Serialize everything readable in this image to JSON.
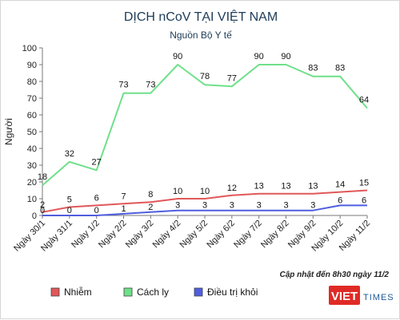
{
  "header": {
    "title": "DỊCH nCoV TẠI VIỆT NAM",
    "subtitle": "Nguồn Bộ Y tế"
  },
  "footer": {
    "update_note": "Cập nhật đến 8h30 ngày 11/2"
  },
  "logo": {
    "text_main": "VIET",
    "text_sub": "TIMES"
  },
  "chart_data": {
    "type": "line",
    "categories": [
      "Ngày 30/1",
      "Ngày 31/1",
      "Ngày 1/2",
      "Ngày 2/2",
      "Ngày 3/2",
      "Ngày 4/2",
      "Ngày 5/2",
      "Ngày 6/2",
      "Ngày 7/2",
      "Ngày 8/2",
      "Ngày 9/2",
      "Ngày 10/2",
      "Ngày 11/2"
    ],
    "series": [
      {
        "name": "Nhiễm",
        "values": [
          2,
          5,
          6,
          7,
          8,
          10,
          10,
          12,
          13,
          13,
          13,
          14,
          15
        ],
        "color": "#e15759"
      },
      {
        "name": "Cách ly",
        "values": [
          18,
          32,
          27,
          73,
          73,
          90,
          78,
          77,
          90,
          90,
          83,
          83,
          64
        ],
        "color": "#6fe08a"
      },
      {
        "name": "Điều trị khỏi",
        "values": [
          0,
          0,
          0,
          1,
          2,
          3,
          3,
          3,
          3,
          3,
          3,
          6,
          6
        ],
        "color": "#4f5ee0"
      }
    ],
    "ylim": [
      0,
      100
    ],
    "yticks": [
      0,
      10,
      20,
      30,
      40,
      50,
      60,
      70,
      80,
      90,
      100
    ],
    "ylabel": "Người",
    "xlabel": "",
    "grid": false,
    "legend_position": "bottom"
  }
}
